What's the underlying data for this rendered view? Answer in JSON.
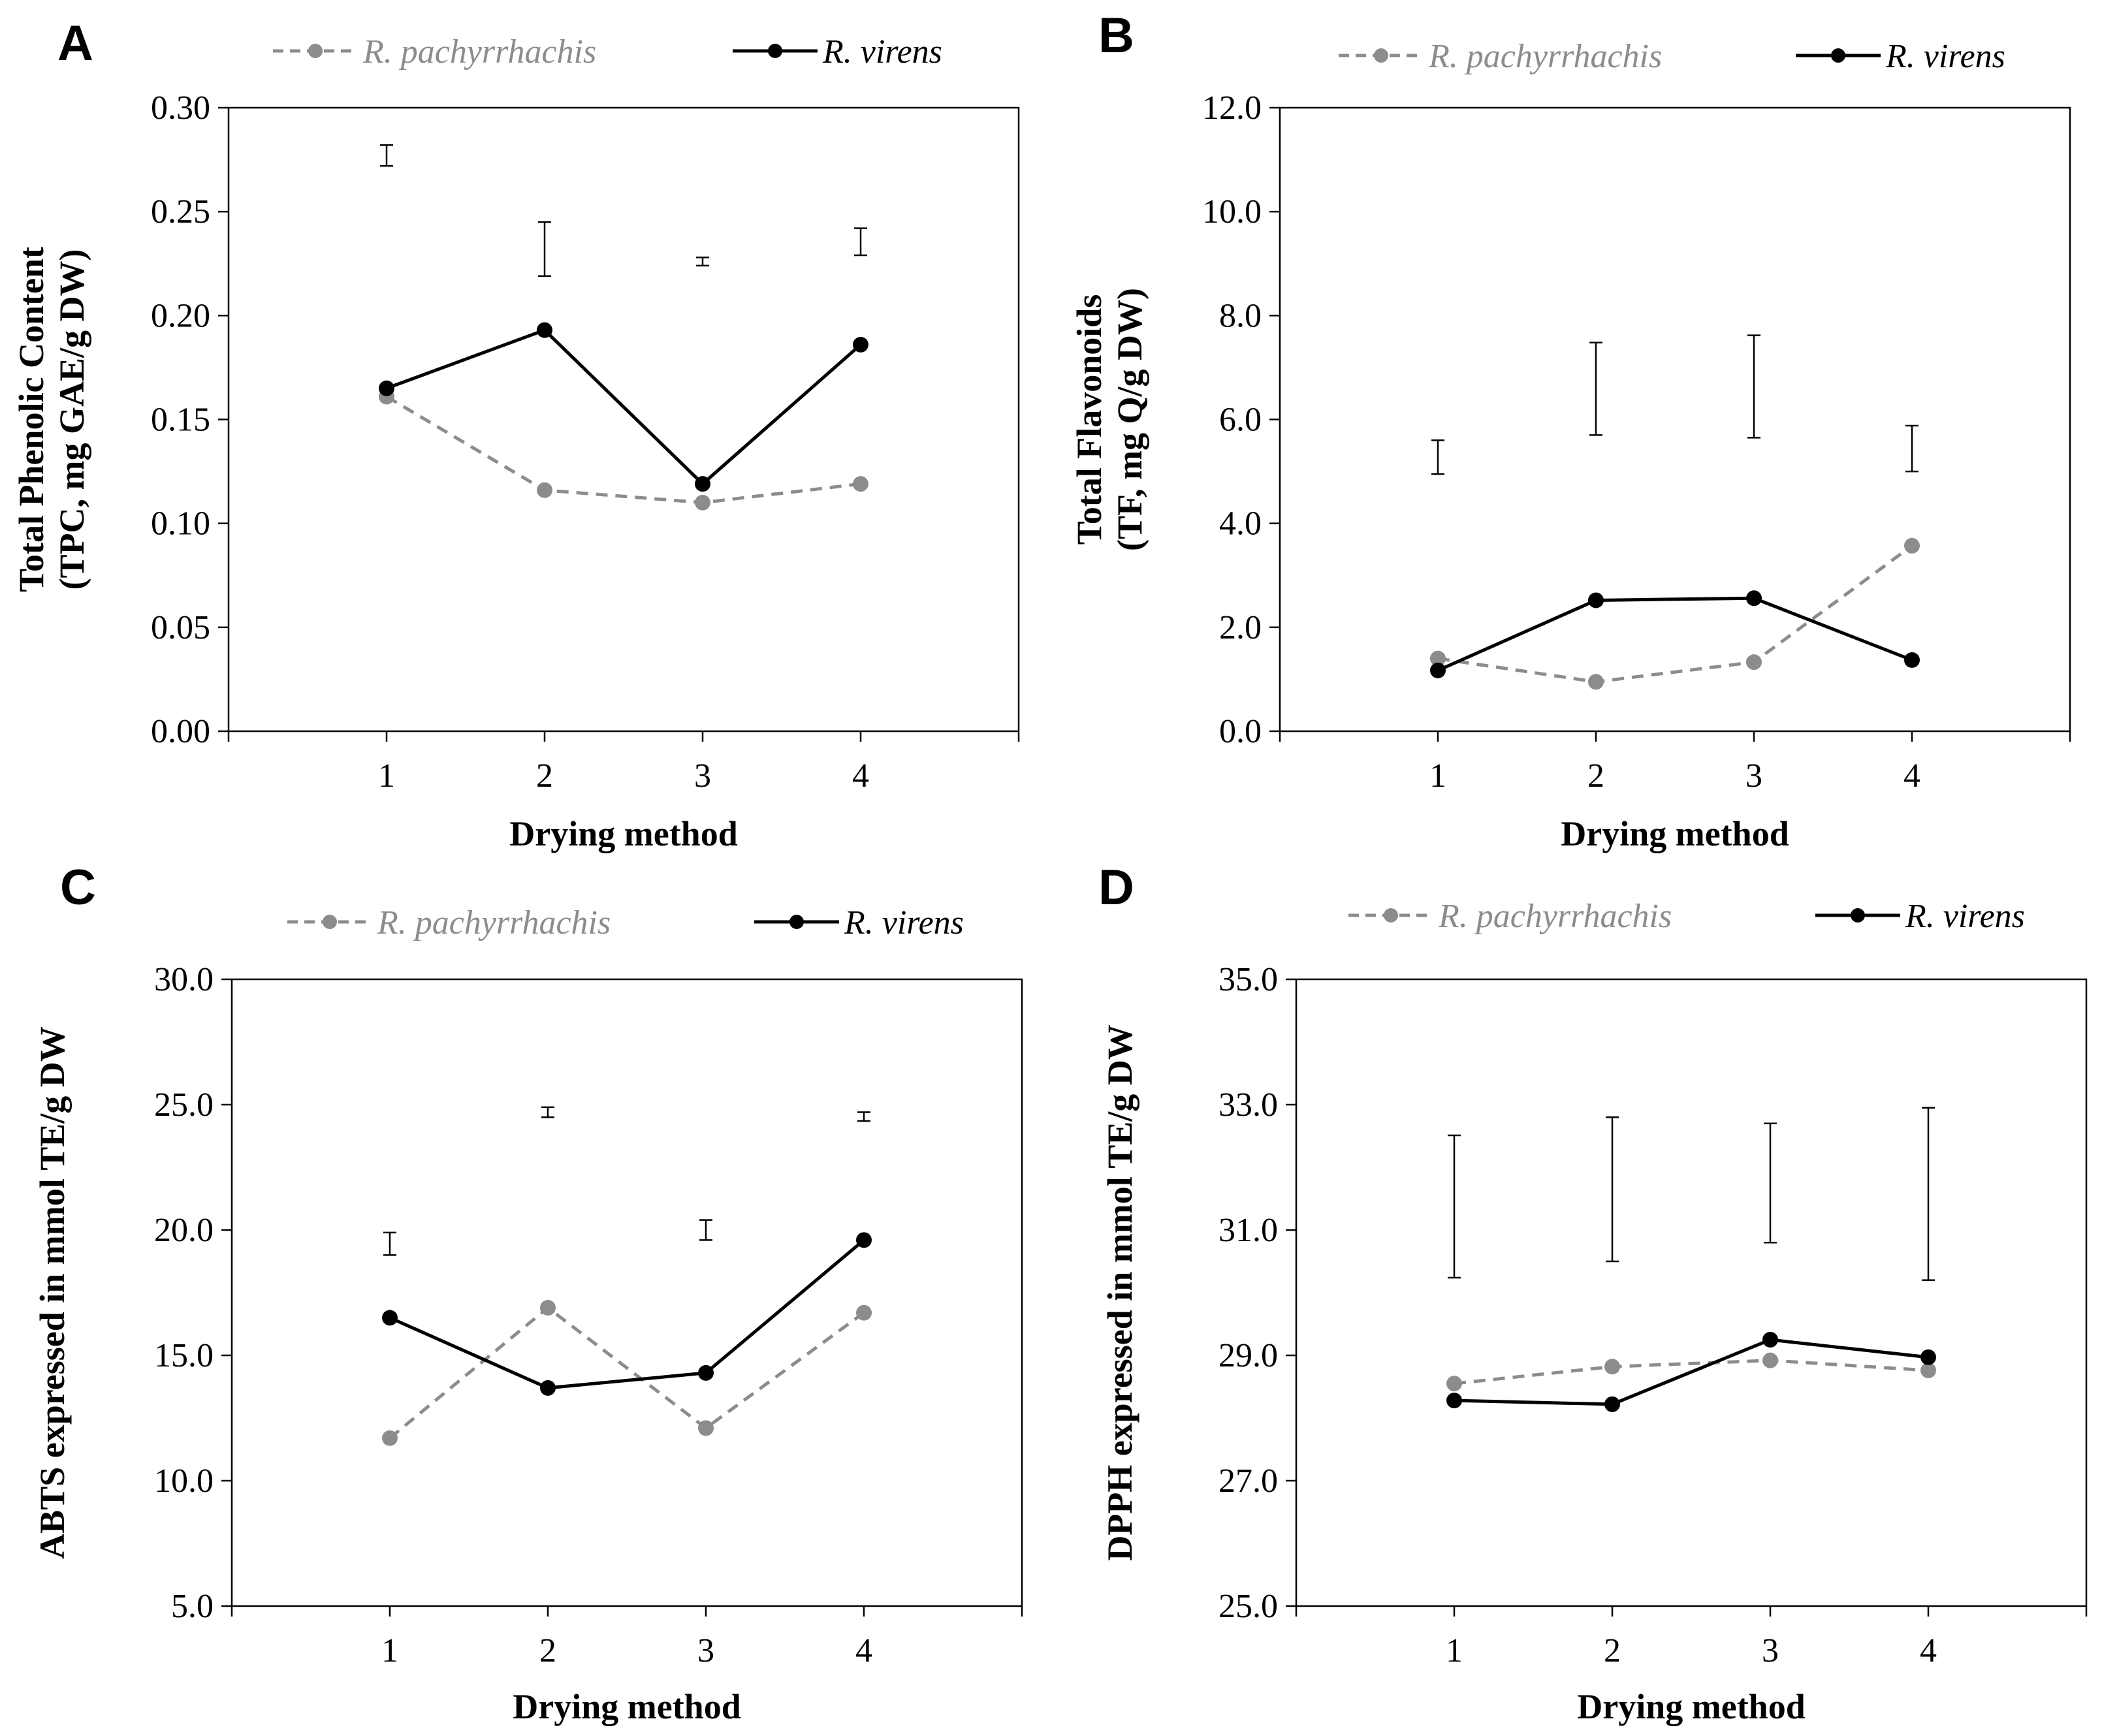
{
  "chart_data": [
    {
      "type": "line",
      "panel": "A",
      "ylabel_lines": [
        "Total Phenolic Content",
        "(TPC, mg GAE/g DW)"
      ],
      "xlabel": "Drying method",
      "categories": [
        "1",
        "2",
        "3",
        "4"
      ],
      "ylim": [
        0,
        0.3
      ],
      "y_ticks": [
        "0.00",
        "0.05",
        "0.10",
        "0.15",
        "0.20",
        "0.25",
        "0.30"
      ],
      "grid": false,
      "legend_position": "top",
      "series": [
        {
          "name": "R. pachyrrhachis",
          "style": "dashed",
          "color": "#8c8c8c",
          "values": [
            0.161,
            0.116,
            0.11,
            0.119
          ]
        },
        {
          "name": "R. virens",
          "style": "solid",
          "color": "#000000",
          "values": [
            0.165,
            0.193,
            0.119,
            0.186
          ]
        }
      ],
      "error_bars": [
        {
          "category": "1",
          "low": 0.272,
          "high": 0.282
        },
        {
          "category": "2",
          "low": 0.219,
          "high": 0.245
        },
        {
          "category": "3",
          "low": 0.224,
          "high": 0.228
        },
        {
          "category": "4",
          "low": 0.229,
          "high": 0.242
        }
      ]
    },
    {
      "type": "line",
      "panel": "B",
      "ylabel_lines": [
        "Total Flavonoids",
        "(TF,  mg Q/g DW)"
      ],
      "xlabel": "Drying method",
      "categories": [
        "1",
        "2",
        "3",
        "4"
      ],
      "ylim": [
        0,
        12
      ],
      "y_ticks": [
        "0.0",
        "2.0",
        "4.0",
        "6.0",
        "8.0",
        "10.0",
        "12.0"
      ],
      "grid": false,
      "legend_position": "top",
      "series": [
        {
          "name": "R. pachyrrhachis",
          "style": "dashed",
          "color": "#8c8c8c",
          "values": [
            1.4,
            0.95,
            1.33,
            3.57
          ]
        },
        {
          "name": "R. virens",
          "style": "solid",
          "color": "#000000",
          "values": [
            1.17,
            2.52,
            2.56,
            1.37
          ]
        }
      ],
      "error_bars": [
        {
          "category": "1",
          "low": 4.95,
          "high": 5.6
        },
        {
          "category": "2",
          "low": 5.7,
          "high": 7.48
        },
        {
          "category": "3",
          "low": 5.65,
          "high": 7.62
        },
        {
          "category": "4",
          "low": 5.0,
          "high": 5.88
        }
      ]
    },
    {
      "type": "line",
      "panel": "C",
      "ylabel_lines": [
        "ABTS expressed in mmol TE/g  DW"
      ],
      "xlabel": "Drying method",
      "categories": [
        "1",
        "2",
        "3",
        "4"
      ],
      "ylim": [
        5,
        30
      ],
      "y_ticks": [
        "5.0",
        "10.0",
        "15.0",
        "20.0",
        "25.0",
        "30.0"
      ],
      "grid": false,
      "legend_position": "top",
      "series": [
        {
          "name": "R. pachyrrhachis",
          "style": "dashed",
          "color": "#8c8c8c",
          "values": [
            11.7,
            16.9,
            12.1,
            16.7
          ]
        },
        {
          "name": "R. virens",
          "style": "solid",
          "color": "#000000",
          "values": [
            16.5,
            13.7,
            14.3,
            19.6
          ]
        }
      ],
      "error_bars": [
        {
          "category": "1",
          "low": 19.0,
          "high": 19.9
        },
        {
          "category": "2",
          "low": 24.5,
          "high": 24.9
        },
        {
          "category": "3",
          "low": 19.6,
          "high": 20.4
        },
        {
          "category": "4",
          "low": 24.35,
          "high": 24.7
        }
      ]
    },
    {
      "type": "line",
      "panel": "D",
      "ylabel_lines": [
        "DPPH expressed in mmol TE/g  DW"
      ],
      "xlabel": "Drying method",
      "categories": [
        "1",
        "2",
        "3",
        "4"
      ],
      "ylim": [
        25,
        35
      ],
      "y_ticks": [
        "25.0",
        "27.0",
        "29.0",
        "31.0",
        "33.0",
        "35.0"
      ],
      "grid": false,
      "legend_position": "top",
      "series": [
        {
          "name": "R. pachyrrhachis",
          "style": "dashed",
          "color": "#8c8c8c",
          "values": [
            28.55,
            28.82,
            28.92,
            28.76
          ]
        },
        {
          "name": "R. virens",
          "style": "solid",
          "color": "#000000",
          "values": [
            28.28,
            28.22,
            29.25,
            28.97
          ]
        }
      ],
      "error_bars": [
        {
          "category": "1",
          "low": 30.24,
          "high": 32.51
        },
        {
          "category": "2",
          "low": 30.5,
          "high": 32.8
        },
        {
          "category": "3",
          "low": 30.8,
          "high": 32.7
        },
        {
          "category": "4",
          "low": 30.2,
          "high": 32.95
        }
      ]
    }
  ]
}
